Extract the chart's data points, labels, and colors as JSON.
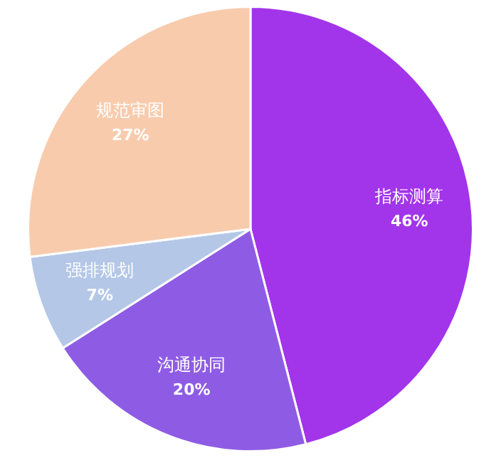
{
  "chart_data": {
    "type": "pie",
    "categories": [
      "指标测算",
      "沟通协同",
      "强排规划",
      "规范审图"
    ],
    "values": [
      46,
      20,
      7,
      27
    ],
    "colors": [
      "#a234ea",
      "#8e5ce4",
      "#b4c7e7",
      "#f8cbad"
    ],
    "value_labels": [
      "46%",
      "20%",
      "7%",
      "27%"
    ],
    "legend": false
  }
}
